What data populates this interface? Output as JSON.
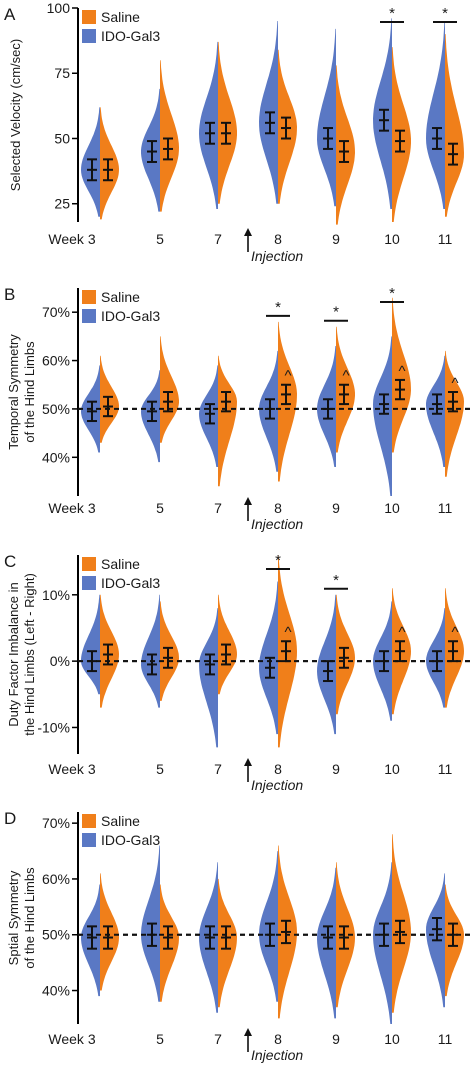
{
  "colors": {
    "saline": "#f07f1a",
    "ido": "#5a78c4",
    "axis": "#000000"
  },
  "chart_data": [
    {
      "type": "violin",
      "panel_label": "A",
      "ylabel": "Selected Velocity (cm/sec)",
      "yticks": [
        25,
        50,
        75,
        100
      ],
      "ylim": [
        18,
        100
      ],
      "reference_line": null,
      "categories": [
        "Week 3",
        "5",
        "7",
        "8",
        "9",
        "10",
        "11"
      ],
      "annotation": "Injection",
      "legend": [
        "Saline",
        "IDO-Gal3"
      ],
      "series": [
        {
          "name": "IDO-Gal3",
          "mean": [
            38,
            45,
            52,
            56,
            50,
            57,
            50
          ],
          "error": [
            4,
            4,
            4,
            4,
            4,
            4,
            4
          ],
          "min": [
            20,
            22,
            23,
            25,
            24,
            23,
            23
          ],
          "max": [
            62,
            69,
            87,
            95,
            92,
            96,
            95
          ]
        },
        {
          "name": "Saline",
          "mean": [
            38,
            46,
            52,
            54,
            45,
            49,
            44
          ],
          "error": [
            4,
            4,
            4,
            4,
            4,
            4,
            4
          ],
          "min": [
            19,
            22,
            25,
            25,
            17,
            18,
            20
          ],
          "max": [
            62,
            80,
            87,
            84,
            78,
            85,
            90
          ]
        }
      ],
      "significance": [
        {
          "category": "10",
          "label": "*"
        },
        {
          "category": "11",
          "label": "*"
        }
      ],
      "caret": []
    },
    {
      "type": "violin",
      "panel_label": "B",
      "ylabel": "Temporal Symmetry of the Hind Limbs",
      "yticks": [
        40,
        50,
        60,
        70
      ],
      "ytick_labels": [
        "40%",
        "50%",
        "60%",
        "70%"
      ],
      "ylim": [
        32,
        75
      ],
      "reference_line": 50,
      "categories": [
        "Week 3",
        "5",
        "7",
        "8",
        "9",
        "10",
        "11"
      ],
      "annotation": "Injection",
      "legend": [
        "Saline",
        "IDO-Gal3"
      ],
      "series": [
        {
          "name": "IDO-Gal3",
          "mean": [
            49.5,
            49.5,
            49,
            50,
            50,
            51,
            51
          ],
          "error": [
            2,
            2,
            2,
            2,
            2,
            2,
            2
          ],
          "min": [
            41,
            39,
            38,
            37,
            38,
            32,
            38
          ],
          "max": [
            59,
            58,
            59,
            62,
            63,
            65,
            61
          ]
        },
        {
          "name": "Saline",
          "mean": [
            50.5,
            51.5,
            51.5,
            53,
            53,
            54,
            51.5
          ],
          "error": [
            2,
            2,
            2,
            2,
            2,
            2,
            2
          ],
          "min": [
            43,
            43,
            34,
            35,
            41,
            41,
            36
          ],
          "max": [
            61,
            65,
            61,
            68,
            67,
            73,
            62
          ]
        }
      ],
      "significance": [
        {
          "category": "8",
          "label": "*"
        },
        {
          "category": "9",
          "label": "*"
        },
        {
          "category": "10",
          "label": "*"
        }
      ],
      "caret": [
        "8",
        "9",
        "10",
        "11"
      ]
    },
    {
      "type": "violin",
      "panel_label": "C",
      "ylabel": "Duty Factor Imbalance in the Hind Limbs (Left - Right)",
      "yticks": [
        -10,
        0,
        10
      ],
      "ytick_labels": [
        "-10%",
        "0%",
        "10%"
      ],
      "ylim": [
        -14,
        16
      ],
      "reference_line": 0,
      "categories": [
        "Week 3",
        "5",
        "7",
        "8",
        "9",
        "10",
        "11"
      ],
      "annotation": "Injection",
      "legend": [
        "Saline",
        "IDO-Gal3"
      ],
      "series": [
        {
          "name": "IDO-Gal3",
          "mean": [
            0,
            -0.5,
            -0.5,
            -1,
            -1.5,
            0,
            0
          ],
          "error": [
            1.5,
            1.5,
            1.5,
            1.5,
            1.5,
            1.5,
            1.5
          ],
          "min": [
            -5,
            -7,
            -13,
            -11,
            -11,
            -9,
            -7
          ],
          "max": [
            10,
            10,
            8,
            12,
            10,
            9,
            8
          ]
        },
        {
          "name": "Saline",
          "mean": [
            1,
            0.5,
            1,
            1.5,
            0.5,
            1.5,
            1.5
          ],
          "error": [
            1.5,
            1.5,
            1.5,
            1.5,
            1.5,
            1.5,
            1.5
          ],
          "min": [
            -7,
            -6,
            -5,
            -13,
            -8,
            -8,
            -7
          ],
          "max": [
            10,
            9,
            10,
            16,
            10,
            11,
            11
          ]
        }
      ],
      "significance": [
        {
          "category": "8",
          "label": "*"
        },
        {
          "category": "9",
          "label": "*"
        }
      ],
      "caret": [
        "8",
        "10",
        "11"
      ]
    },
    {
      "type": "violin",
      "panel_label": "D",
      "ylabel": "Sptial Symmetry of the Hind Limbs",
      "yticks": [
        40,
        50,
        60,
        70
      ],
      "ytick_labels": [
        "40%",
        "50%",
        "60%",
        "70%"
      ],
      "ylim": [
        34,
        72
      ],
      "reference_line": 50,
      "categories": [
        "Week 3",
        "5",
        "7",
        "8",
        "9",
        "10",
        "11"
      ],
      "annotation": "Injection",
      "legend": [
        "Saline",
        "IDO-Gal3"
      ],
      "series": [
        {
          "name": "IDO-Gal3",
          "mean": [
            49.5,
            50,
            49.5,
            50,
            49.5,
            50,
            51
          ],
          "error": [
            2,
            2,
            2,
            2,
            2,
            2,
            2
          ],
          "min": [
            39,
            38,
            36,
            38,
            35,
            34,
            37
          ],
          "max": [
            59,
            66,
            63,
            65,
            62,
            63,
            61
          ]
        },
        {
          "name": "Saline",
          "mean": [
            49.5,
            49.5,
            49.5,
            50.5,
            49.5,
            50.5,
            50
          ],
          "error": [
            2,
            2,
            2,
            2,
            2,
            2,
            2
          ],
          "min": [
            40,
            38,
            37,
            35,
            37,
            36,
            39
          ],
          "max": [
            61,
            59,
            60,
            66,
            63,
            68,
            59
          ]
        }
      ],
      "significance": [],
      "caret": []
    }
  ]
}
